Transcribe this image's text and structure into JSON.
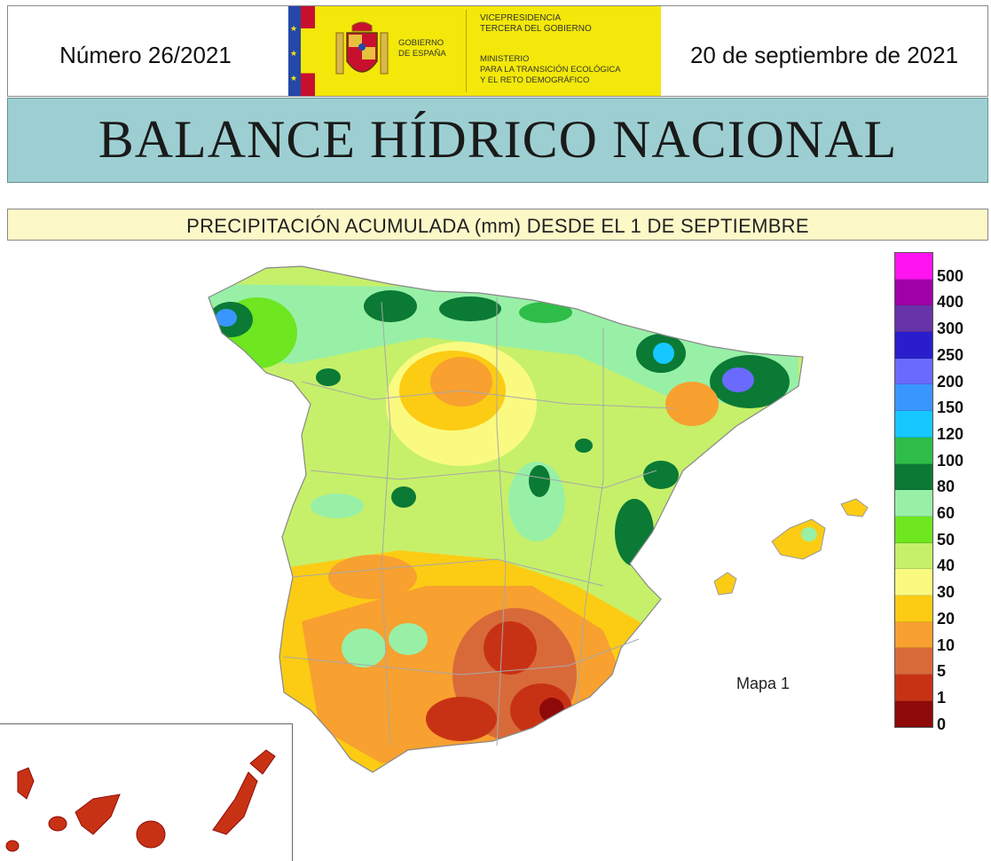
{
  "header": {
    "number": "Número 26/2021",
    "date": "20 de septiembre de 2021",
    "gobierno": [
      "GOBIERNO",
      "DE ESPAÑA"
    ],
    "vicepresidencia": [
      "VICEPRESIDENCIA",
      "TERCERA DEL GOBIERNO"
    ],
    "ministerio": [
      "MINISTERIO",
      "PARA LA TRANSICIÓN ECOLÓGICA",
      "Y EL RETO DEMOGRÁFICO"
    ]
  },
  "title": "BALANCE HÍDRICO NACIONAL",
  "subtitle": "PRECIPITACIÓN ACUMULADA (mm) DESDE EL 1 DE SEPTIEMBRE",
  "map": {
    "label": "Mapa 1"
  },
  "legend": {
    "colors": [
      "#ff14f0",
      "#a000a8",
      "#6633a8",
      "#2a1ecc",
      "#6a6aff",
      "#3a96ff",
      "#16c8ff",
      "#2ebd48",
      "#0a7a35",
      "#98f0a6",
      "#6ee620",
      "#c6f06a",
      "#fafa80",
      "#fccc14",
      "#f8a030",
      "#d86a3a",
      "#c83214",
      "#8e0a0a"
    ],
    "labels": [
      "500",
      "400",
      "300",
      "250",
      "200",
      "150",
      "120",
      "100",
      "80",
      "60",
      "50",
      "40",
      "30",
      "20",
      "10",
      "5",
      "1",
      "0"
    ]
  }
}
